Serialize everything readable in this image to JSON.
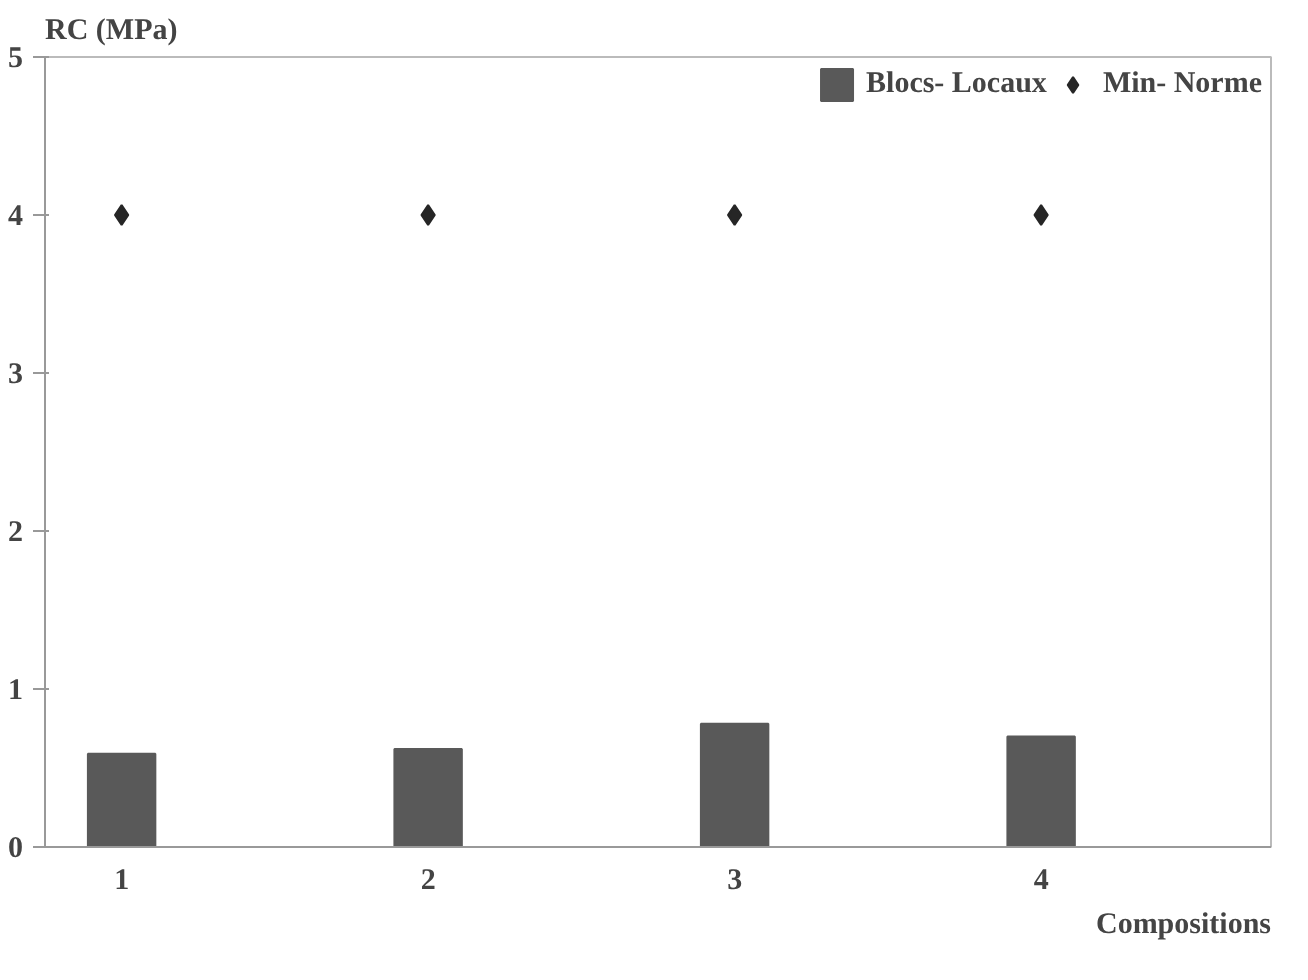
{
  "chart_data": {
    "type": "bar",
    "ylabel": "RC (MPa)",
    "xlabel": "Compositions",
    "categories": [
      "1",
      "2",
      "3",
      "4"
    ],
    "series": [
      {
        "name": "Blocs- Locaux",
        "color": "#595959",
        "values": [
          0.59,
          0.62,
          0.78,
          0.7
        ]
      },
      {
        "name": "Min- Norme",
        "type": "scatter",
        "color": "#262626",
        "marker": "diamond",
        "values": [
          4,
          4,
          4,
          4
        ]
      }
    ],
    "ylim": [
      0,
      5
    ],
    "yticks": [
      0,
      1,
      2,
      3,
      4,
      5
    ],
    "grid": false,
    "legend": "top right"
  }
}
